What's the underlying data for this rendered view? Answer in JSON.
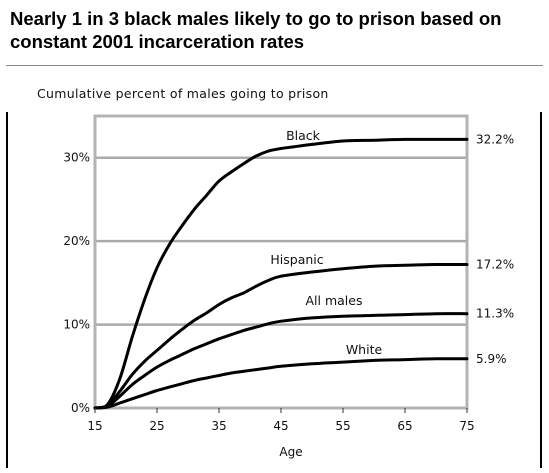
{
  "chart_data": {
    "type": "line",
    "title": "Nearly 1 in 3 black males likely to go to prison based on constant 2001 incarceration rates",
    "ylabel": "Cumulative percent of males going to prison",
    "xlabel": "Age",
    "xlim": [
      15,
      75
    ],
    "ylim": [
      0,
      35
    ],
    "x_ticks": [
      15,
      25,
      35,
      45,
      55,
      65,
      75
    ],
    "x_tick_labels": [
      "15",
      "25",
      "35",
      "45",
      "55",
      "65",
      "75"
    ],
    "y_ticks": [
      0,
      10,
      20,
      30
    ],
    "y_tick_labels": [
      "0%",
      "10%",
      "20%",
      "30%"
    ],
    "grid": "horizontal",
    "series": [
      {
        "name": "Black",
        "end_label": "32.2%",
        "x": [
          15,
          17,
          19,
          21,
          23,
          25,
          27,
          29,
          31,
          33,
          35,
          37,
          39,
          41,
          43,
          45,
          47,
          50,
          55,
          60,
          65,
          70,
          75
        ],
        "y": [
          0,
          0.4,
          3.5,
          8.5,
          13.0,
          16.8,
          19.6,
          21.8,
          23.8,
          25.5,
          27.2,
          28.3,
          29.3,
          30.2,
          30.8,
          31.1,
          31.3,
          31.6,
          32.0,
          32.1,
          32.2,
          32.2,
          32.2
        ]
      },
      {
        "name": "Hispanic",
        "end_label": "17.2%",
        "x": [
          15,
          17,
          19,
          21,
          23,
          25,
          27,
          29,
          31,
          33,
          35,
          37,
          39,
          41,
          43,
          45,
          50,
          55,
          60,
          65,
          70,
          75
        ],
        "y": [
          0,
          0.3,
          2.0,
          4.0,
          5.6,
          6.9,
          8.2,
          9.4,
          10.5,
          11.4,
          12.4,
          13.2,
          13.8,
          14.6,
          15.3,
          15.8,
          16.3,
          16.7,
          17.0,
          17.1,
          17.2,
          17.2
        ]
      },
      {
        "name": "All males",
        "end_label": "11.3%",
        "x": [
          15,
          17,
          19,
          21,
          23,
          25,
          27,
          29,
          31,
          33,
          35,
          37,
          39,
          41,
          43,
          45,
          50,
          55,
          60,
          65,
          70,
          75
        ],
        "y": [
          0,
          0.2,
          1.4,
          2.8,
          3.9,
          4.9,
          5.7,
          6.4,
          7.1,
          7.7,
          8.3,
          8.8,
          9.3,
          9.7,
          10.1,
          10.4,
          10.8,
          11.0,
          11.1,
          11.2,
          11.3,
          11.3
        ]
      },
      {
        "name": "White",
        "end_label": "5.9%",
        "x": [
          15,
          17,
          19,
          21,
          23,
          25,
          27,
          29,
          31,
          33,
          35,
          37,
          39,
          41,
          43,
          45,
          50,
          55,
          60,
          65,
          70,
          75
        ],
        "y": [
          0,
          0.1,
          0.6,
          1.1,
          1.6,
          2.1,
          2.5,
          2.9,
          3.3,
          3.6,
          3.9,
          4.2,
          4.4,
          4.6,
          4.8,
          5.0,
          5.3,
          5.5,
          5.7,
          5.8,
          5.9,
          5.9
        ]
      }
    ]
  },
  "colors": {
    "line": "#000000",
    "grid": "#aaaaaa",
    "frame": "#b3b3b3"
  }
}
